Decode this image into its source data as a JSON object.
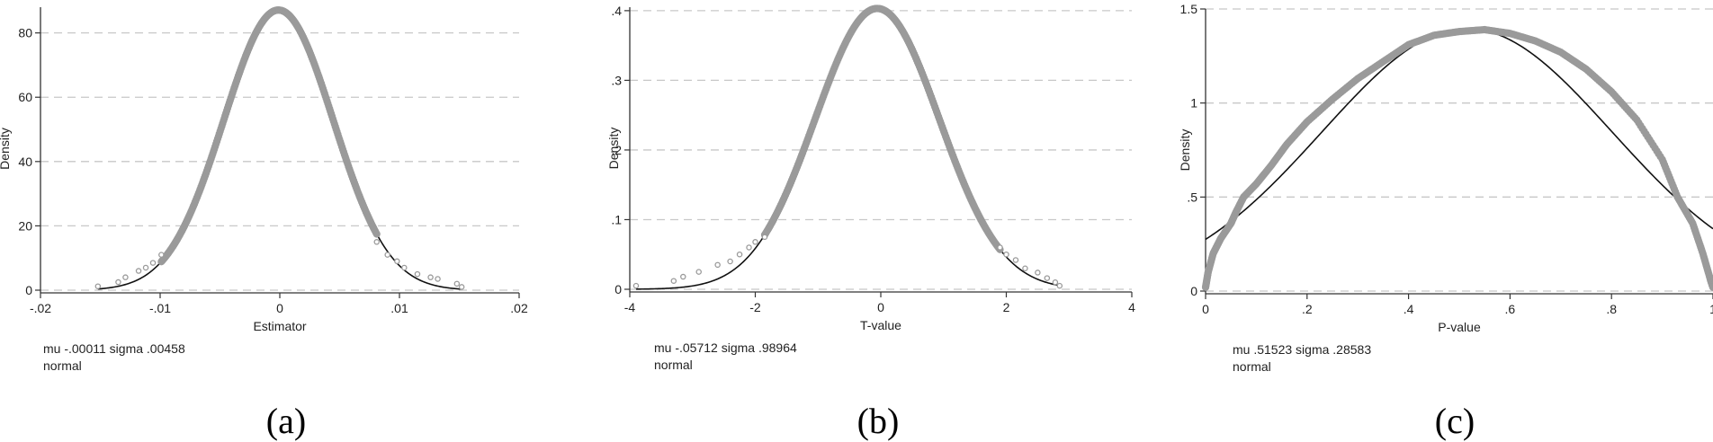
{
  "colors": {
    "points": "#9a9a9a",
    "normal_curve": "#111111",
    "grid": "#c8c8c8",
    "axis": "#333333"
  },
  "chart_data": [
    {
      "type": "scatter",
      "panel": "(a)",
      "xlabel": "Estimator",
      "ylabel": "Density",
      "xlim": [
        -0.02,
        0.02
      ],
      "ylim": [
        0,
        88
      ],
      "xticks": [
        -0.02,
        -0.01,
        0,
        0.01,
        0.02
      ],
      "xtick_labels": [
        "-.02",
        "-.01",
        "0",
        ".01",
        ".02"
      ],
      "yticks": [
        0,
        20,
        40,
        60,
        80
      ],
      "ytick_labels": [
        "0",
        "20",
        "40",
        "60",
        "80"
      ],
      "grid": "horizontal dashed",
      "note_lines": [
        "mu -.00011 sigma .00458",
        "normal"
      ],
      "normal_mu": -0.00011,
      "normal_sigma": 0.00458,
      "points_x_range": [
        -0.0152,
        0.0152
      ],
      "tail_points": [
        {
          "x": -0.0152,
          "y": 1.2
        },
        {
          "x": -0.0135,
          "y": 2.5
        },
        {
          "x": -0.0129,
          "y": 4.0
        },
        {
          "x": -0.0118,
          "y": 6.0
        },
        {
          "x": -0.0112,
          "y": 7.0
        },
        {
          "x": -0.0106,
          "y": 8.5
        },
        {
          "x": -0.0099,
          "y": 11.0
        },
        {
          "x": 0.0081,
          "y": 15.0
        },
        {
          "x": 0.009,
          "y": 11.0
        },
        {
          "x": 0.0098,
          "y": 9.0
        },
        {
          "x": 0.0104,
          "y": 7.0
        },
        {
          "x": 0.0115,
          "y": 5.0
        },
        {
          "x": 0.0126,
          "y": 4.0
        },
        {
          "x": 0.0132,
          "y": 3.5
        },
        {
          "x": 0.0148,
          "y": 2.0
        },
        {
          "x": 0.0152,
          "y": 1.0
        }
      ]
    },
    {
      "type": "scatter",
      "panel": "(b)",
      "xlabel": "T-value",
      "ylabel": "Density",
      "xlim": [
        -4,
        4
      ],
      "ylim": [
        0,
        0.405
      ],
      "xticks": [
        -4,
        -2,
        0,
        2,
        4
      ],
      "xtick_labels": [
        "-4",
        "-2",
        "0",
        "2",
        "4"
      ],
      "yticks": [
        0,
        0.1,
        0.2,
        0.3,
        0.4
      ],
      "ytick_labels": [
        "0",
        ".1",
        ".2",
        ".3",
        ".4"
      ],
      "grid": "horizontal dashed",
      "note_lines": [
        "mu -.05712 sigma .98964",
        "normal"
      ],
      "normal_mu": -0.05712,
      "normal_sigma": 0.98964,
      "points_x_range": [
        -3.9,
        2.85
      ],
      "tail_points": [
        {
          "x": -3.9,
          "y": 0.005
        },
        {
          "x": -3.3,
          "y": 0.012
        },
        {
          "x": -3.15,
          "y": 0.018
        },
        {
          "x": -2.9,
          "y": 0.025
        },
        {
          "x": -2.6,
          "y": 0.035
        },
        {
          "x": -2.4,
          "y": 0.04
        },
        {
          "x": -2.25,
          "y": 0.05
        },
        {
          "x": -2.1,
          "y": 0.06
        },
        {
          "x": -2.0,
          "y": 0.068
        },
        {
          "x": -1.85,
          "y": 0.075
        },
        {
          "x": 1.9,
          "y": 0.06
        },
        {
          "x": 2.0,
          "y": 0.05
        },
        {
          "x": 2.15,
          "y": 0.042
        },
        {
          "x": 2.3,
          "y": 0.03
        },
        {
          "x": 2.5,
          "y": 0.024
        },
        {
          "x": 2.65,
          "y": 0.016
        },
        {
          "x": 2.78,
          "y": 0.01
        },
        {
          "x": 2.85,
          "y": 0.005
        }
      ]
    },
    {
      "type": "scatter",
      "panel": "(c)",
      "xlabel": "P-value",
      "ylabel": "Density",
      "xlim": [
        0,
        1
      ],
      "ylim": [
        0,
        1.5
      ],
      "xticks": [
        0,
        0.2,
        0.4,
        0.6,
        0.8,
        1
      ],
      "xtick_labels": [
        "0",
        ".2",
        ".4",
        ".6",
        ".8",
        "1"
      ],
      "yticks": [
        0,
        0.5,
        1,
        1.5
      ],
      "ytick_labels": [
        "0",
        ".5",
        "1",
        "1.5"
      ],
      "grid": "horizontal dashed",
      "note_lines": [
        "mu .51523 sigma .28583",
        "normal"
      ],
      "normal_mu": 0.51523,
      "normal_sigma": 0.28583,
      "points_x_range": [
        0.0,
        1.0
      ],
      "empirical_curve": [
        {
          "x": 0.0,
          "y": 0.02
        },
        {
          "x": 0.005,
          "y": 0.1
        },
        {
          "x": 0.015,
          "y": 0.2
        },
        {
          "x": 0.03,
          "y": 0.28
        },
        {
          "x": 0.05,
          "y": 0.36
        },
        {
          "x": 0.06,
          "y": 0.42
        },
        {
          "x": 0.075,
          "y": 0.5
        },
        {
          "x": 0.1,
          "y": 0.57
        },
        {
          "x": 0.13,
          "y": 0.67
        },
        {
          "x": 0.16,
          "y": 0.78
        },
        {
          "x": 0.2,
          "y": 0.9
        },
        {
          "x": 0.25,
          "y": 1.02
        },
        {
          "x": 0.3,
          "y": 1.13
        },
        {
          "x": 0.35,
          "y": 1.22
        },
        {
          "x": 0.4,
          "y": 1.31
        },
        {
          "x": 0.45,
          "y": 1.36
        },
        {
          "x": 0.5,
          "y": 1.38
        },
        {
          "x": 0.55,
          "y": 1.39
        },
        {
          "x": 0.6,
          "y": 1.37
        },
        {
          "x": 0.65,
          "y": 1.33
        },
        {
          "x": 0.7,
          "y": 1.27
        },
        {
          "x": 0.75,
          "y": 1.18
        },
        {
          "x": 0.8,
          "y": 1.06
        },
        {
          "x": 0.85,
          "y": 0.91
        },
        {
          "x": 0.9,
          "y": 0.7
        },
        {
          "x": 0.93,
          "y": 0.5
        },
        {
          "x": 0.96,
          "y": 0.36
        },
        {
          "x": 0.98,
          "y": 0.2
        },
        {
          "x": 0.995,
          "y": 0.06
        },
        {
          "x": 1.0,
          "y": 0.02
        }
      ]
    }
  ],
  "captions": [
    "(a)",
    "(b)",
    "(c)"
  ]
}
